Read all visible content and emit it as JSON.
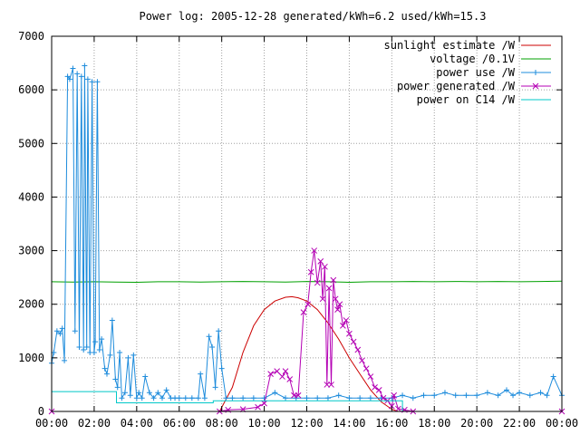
{
  "chart_data": {
    "type": "line",
    "title": "Power log: 2005-12-28 generated/kWh=6.2 used/kWh=15.3",
    "xlabel": "",
    "ylabel": "",
    "x_unit": "hours",
    "xlim": [
      0,
      24
    ],
    "ylim": [
      0,
      7000
    ],
    "x_ticks": [
      0,
      2,
      4,
      6,
      8,
      10,
      12,
      14,
      16,
      18,
      20,
      22,
      24
    ],
    "x_tick_labels": [
      "00:00",
      "02:00",
      "04:00",
      "06:00",
      "08:00",
      "10:00",
      "12:00",
      "14:00",
      "16:00",
      "18:00",
      "20:00",
      "22:00",
      "00:00"
    ],
    "y_ticks": [
      0,
      1000,
      2000,
      3000,
      4000,
      5000,
      6000,
      7000
    ],
    "y_tick_labels": [
      "0",
      "1000",
      "2000",
      "3000",
      "4000",
      "5000",
      "6000",
      "7000"
    ],
    "grid": true,
    "legend_position": "top-right",
    "series": [
      {
        "name": "sunlight estimate /W",
        "color": "#cc0000",
        "style": "line",
        "x": [
          0,
          7.9,
          8.5,
          9,
          9.5,
          10,
          10.5,
          11,
          11.3,
          11.6,
          12,
          12.5,
          13,
          13.5,
          14,
          14.5,
          15,
          15.5,
          16,
          16.3,
          24
        ],
        "y": [
          0,
          0,
          450,
          1100,
          1600,
          1900,
          2060,
          2130,
          2140,
          2120,
          2060,
          1900,
          1650,
          1350,
          1000,
          700,
          400,
          180,
          40,
          0,
          0
        ]
      },
      {
        "name": "voltage /0.1V",
        "color": "#00a000",
        "style": "line",
        "x": [
          0,
          1,
          2,
          3,
          4,
          5,
          6,
          7,
          8,
          9,
          10,
          11,
          12,
          13,
          14,
          15,
          16,
          17,
          18,
          19,
          20,
          21,
          22,
          23,
          24
        ],
        "y": [
          2420,
          2415,
          2420,
          2415,
          2410,
          2420,
          2420,
          2415,
          2420,
          2425,
          2420,
          2415,
          2425,
          2420,
          2410,
          2420,
          2420,
          2425,
          2420,
          2425,
          2420,
          2425,
          2420,
          2425,
          2430
        ]
      },
      {
        "name": "power use /W",
        "color": "#1e8cdc",
        "style": "linespoints",
        "x": [
          0,
          0.1,
          0.25,
          0.4,
          0.5,
          0.6,
          0.75,
          0.85,
          1.0,
          1.1,
          1.2,
          1.3,
          1.4,
          1.5,
          1.55,
          1.65,
          1.7,
          1.8,
          1.9,
          2.0,
          2.05,
          2.15,
          2.25,
          2.35,
          2.5,
          2.6,
          2.75,
          2.85,
          3.0,
          3.1,
          3.2,
          3.3,
          3.45,
          3.6,
          3.7,
          3.85,
          4.0,
          4.1,
          4.25,
          4.4,
          4.6,
          4.8,
          5.0,
          5.2,
          5.4,
          5.6,
          5.8,
          6.0,
          6.3,
          6.6,
          6.9,
          7.0,
          7.2,
          7.4,
          7.55,
          7.7,
          7.85,
          8.0,
          8.2,
          8.5,
          9.0,
          9.5,
          10.0,
          10.5,
          11.0,
          11.5,
          12.0,
          12.5,
          13.0,
          13.5,
          14.0,
          14.5,
          15.0,
          15.5,
          16.0,
          16.5,
          17.0,
          17.5,
          18.0,
          18.5,
          19.0,
          19.5,
          20.0,
          20.5,
          21.0,
          21.4,
          21.7,
          22.0,
          22.5,
          23.0,
          23.3,
          23.6,
          24.0
        ],
        "y": [
          900,
          1100,
          1500,
          1450,
          1550,
          950,
          6250,
          6200,
          6400,
          1500,
          6300,
          1200,
          6250,
          1150,
          6450,
          1200,
          6200,
          1100,
          6150,
          1100,
          1300,
          6150,
          1150,
          1350,
          800,
          700,
          1050,
          1700,
          600,
          450,
          1100,
          250,
          350,
          1000,
          300,
          1050,
          250,
          350,
          250,
          650,
          350,
          250,
          350,
          250,
          400,
          250,
          250,
          250,
          250,
          250,
          250,
          700,
          250,
          1400,
          1200,
          450,
          1500,
          800,
          250,
          250,
          250,
          250,
          250,
          350,
          250,
          250,
          250,
          250,
          250,
          300,
          250,
          250,
          250,
          250,
          250,
          300,
          250,
          300,
          300,
          350,
          300,
          300,
          300,
          350,
          300,
          400,
          300,
          350,
          300,
          350,
          300,
          650,
          300
        ]
      },
      {
        "name": "power generated /W",
        "color": "#b400b4",
        "style": "linespoints",
        "x": [
          0,
          7.9,
          8.3,
          9.0,
          9.7,
          10.0,
          10.3,
          10.6,
          10.85,
          11.0,
          11.2,
          11.4,
          11.6,
          11.85,
          12.05,
          12.2,
          12.35,
          12.5,
          12.65,
          12.75,
          12.85,
          12.95,
          13.05,
          13.15,
          13.25,
          13.35,
          13.45,
          13.55,
          13.7,
          13.85,
          14.0,
          14.2,
          14.4,
          14.6,
          14.8,
          15.0,
          15.2,
          15.4,
          15.6,
          15.8,
          16.0,
          16.1,
          16.3,
          16.6,
          17.0,
          24
        ],
        "y": [
          0,
          0,
          30,
          40,
          80,
          150,
          700,
          750,
          650,
          750,
          600,
          300,
          300,
          1850,
          2000,
          2600,
          3000,
          2400,
          2800,
          2100,
          2700,
          500,
          2300,
          500,
          2450,
          2100,
          1900,
          2000,
          1600,
          1700,
          1450,
          1300,
          1150,
          950,
          800,
          650,
          450,
          400,
          250,
          200,
          100,
          300,
          50,
          30,
          0,
          0
        ]
      },
      {
        "name": "power on C14 /W",
        "color": "#00c8c8",
        "style": "line",
        "x": [
          0,
          3.05,
          3.05,
          7.6,
          7.6,
          16.5,
          16.5,
          24
        ],
        "y": [
          370,
          370,
          160,
          160,
          200,
          200,
          0,
          0
        ]
      }
    ]
  }
}
